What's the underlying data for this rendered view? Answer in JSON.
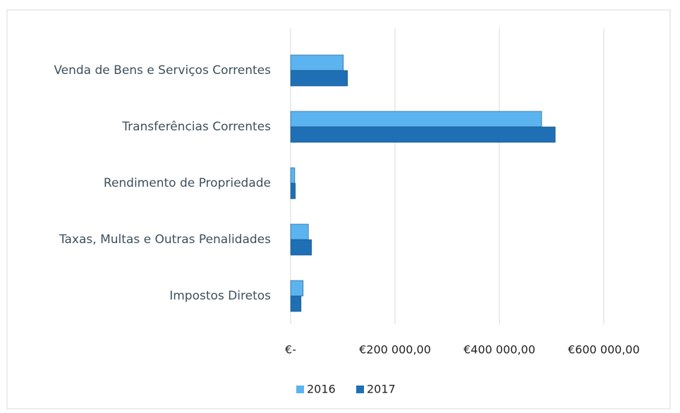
{
  "chart_data": {
    "type": "barh",
    "categories": [
      "Venda de Bens e Serviços Correntes",
      "Transferências Correntes",
      "Rendimento de Propriedade",
      "Taxas, Multas e Outras Penalidades",
      "Impostos Diretos"
    ],
    "series": [
      {
        "name": "2016",
        "color": "#5bb4f0",
        "values": [
          101000,
          481000,
          8000,
          34000,
          24000
        ]
      },
      {
        "name": "2017",
        "color": "#1f6fb5",
        "values": [
          109000,
          507000,
          9000,
          40000,
          20000
        ]
      }
    ],
    "xlim": [
      0,
      600000
    ],
    "xticks": [
      {
        "value": 0,
        "label": "€-"
      },
      {
        "value": 200000,
        "label": "€200 000,00"
      },
      {
        "value": 400000,
        "label": "€400 000,00"
      },
      {
        "value": 600000,
        "label": "€600 000,00"
      }
    ],
    "grid": true
  }
}
